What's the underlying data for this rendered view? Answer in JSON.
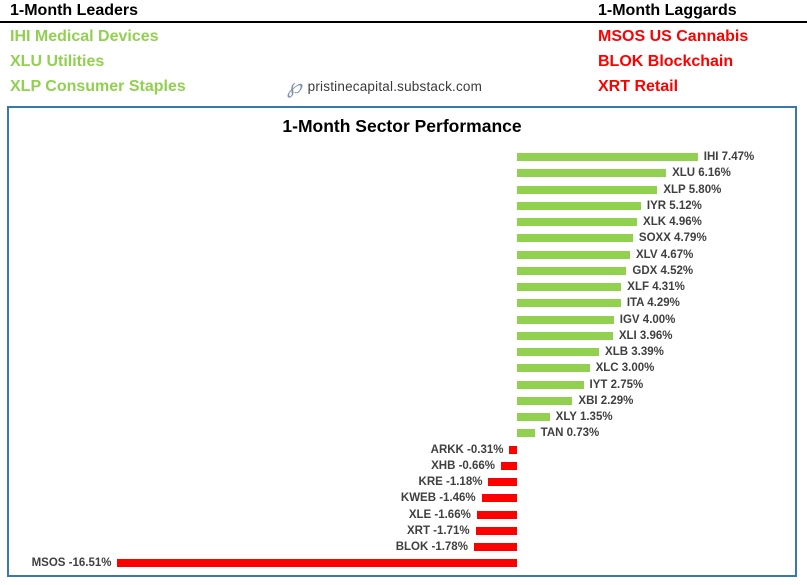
{
  "header": {
    "leaders": {
      "title": "1-Month Leaders",
      "items": [
        "IHI Medical Devices",
        "XLU Utilities",
        "XLP Consumer Staples"
      ]
    },
    "laggards": {
      "title": "1-Month Laggards",
      "items": [
        "MSOS US Cannabis",
        "BLOK Blockchain",
        "XRT Retail"
      ]
    },
    "logo": {
      "icon": "script-p-logo",
      "glyph": "℘",
      "text": "pristinecapital.substack.com"
    }
  },
  "colors": {
    "green": "#92D050",
    "red": "#FF0000",
    "logo_blue": "#7C90AB",
    "label_gray": "#404040",
    "chart_border_blue": "#3878AE"
  },
  "chart_data": {
    "type": "bar",
    "orientation": "horizontal",
    "title": "1-Month Sector Performance",
    "categories": [
      "IHI",
      "XLU",
      "XLP",
      "IYR",
      "XLK",
      "SOXX",
      "XLV",
      "GDX",
      "XLF",
      "ITA",
      "IGV",
      "XLI",
      "XLB",
      "XLC",
      "IYT",
      "XBI",
      "XLY",
      "TAN",
      "ARKK",
      "XHB",
      "KRE",
      "KWEB",
      "XLE",
      "XRT",
      "BLOK",
      "MSOS"
    ],
    "values": [
      7.47,
      6.16,
      5.8,
      5.12,
      4.96,
      4.79,
      4.67,
      4.52,
      4.31,
      4.29,
      4.0,
      3.96,
      3.39,
      3.0,
      2.75,
      2.29,
      1.35,
      0.73,
      -0.31,
      -0.66,
      -1.18,
      -1.46,
      -1.66,
      -1.71,
      -1.78,
      -16.51
    ],
    "value_suffix": "%",
    "positive_color": "#92D050",
    "negative_color": "#FF0000",
    "label_color": "#404040",
    "xlim": [
      -21,
      11.6
    ],
    "grid": false,
    "legend": false
  }
}
